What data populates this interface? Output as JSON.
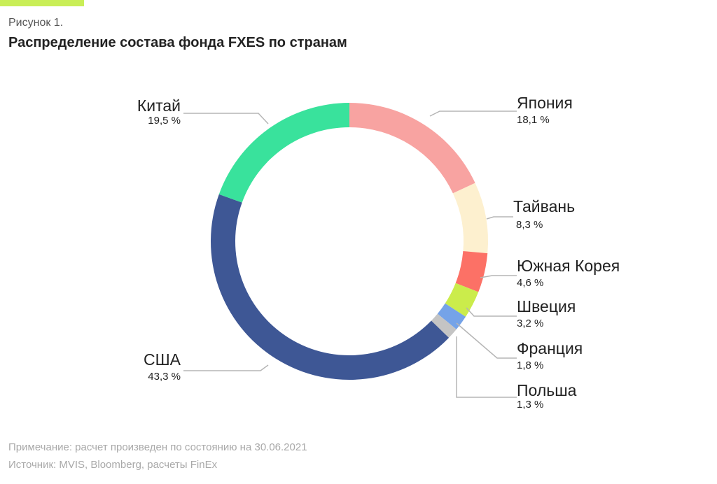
{
  "figure_label": "Рисунок 1.",
  "title": "Распределение состава фонда FXES по странам",
  "note": "Примечание: расчет произведен по состоянию на 30.06.2021",
  "source": "Источник: MVIS, Bloomberg, расчеты FinEx",
  "colors": {
    "accent": "#c9ee57",
    "leader": "#b5b5b5"
  },
  "chart_data": {
    "type": "pie",
    "variant": "donut",
    "title": "Распределение состава фонда FXES по странам",
    "unit": "%",
    "slices": [
      {
        "label": "Япония",
        "value": 18.1,
        "display": "18,1 %",
        "color": "#f8a3a1"
      },
      {
        "label": "Тайвань",
        "value": 8.3,
        "display": "8,3 %",
        "color": "#fdf0cf"
      },
      {
        "label": "Южная Корея",
        "value": 4.6,
        "display": "4,6 %",
        "color": "#fc7166"
      },
      {
        "label": "Швеция",
        "value": 3.2,
        "display": "3,2 %",
        "color": "#cbec4b"
      },
      {
        "label": "Франция",
        "value": 1.8,
        "display": "1,8 %",
        "color": "#75a3e8"
      },
      {
        "label": "Польша",
        "value": 1.3,
        "display": "1,3 %",
        "color": "#c4c4c4"
      },
      {
        "label": "США",
        "value": 43.3,
        "display": "43,3 %",
        "color": "#3e5795"
      },
      {
        "label": "Китай",
        "value": 19.5,
        "display": "19,5 %",
        "color": "#39e29c"
      }
    ]
  }
}
